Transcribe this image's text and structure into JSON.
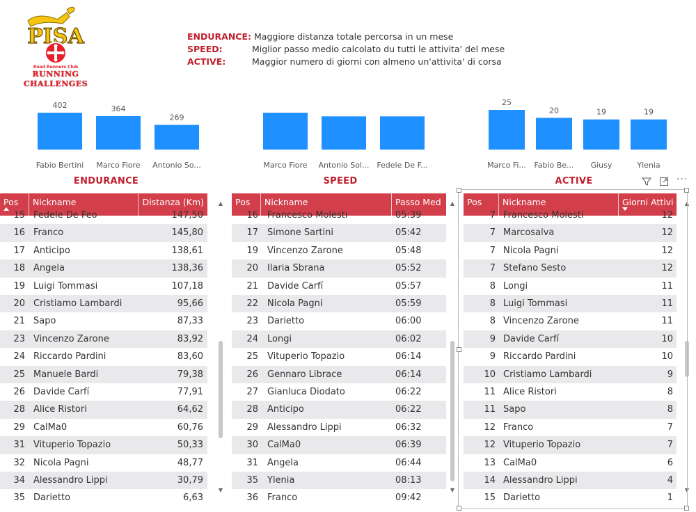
{
  "logo": {
    "name": "PISA",
    "club": "Road Runners Club",
    "line1": "RUNNING",
    "line2": "CHALLENGES",
    "colors": {
      "yellow": "#f6c514",
      "red": "#e8202a"
    }
  },
  "description": [
    {
      "key": "ENDURANCE:",
      "text": "Maggiore distanza totale percorsa in un mese"
    },
    {
      "key": "SPEED:",
      "text": "Miglior passo medio calcolato du tutti le attivita' del mese"
    },
    {
      "key": "ACTIVE:",
      "text": "Maggior numero di giorni con almeno un'attivita' di corsa"
    }
  ],
  "chart_data": [
    {
      "type": "bar",
      "title": "ENDURANCE",
      "categories": [
        "Fabio Bertini",
        "Marco Fiore",
        "Antonio So..."
      ],
      "values": [
        402,
        364,
        269
      ],
      "value_labels": [
        "402",
        "364",
        "269"
      ],
      "ylim": [
        0,
        402
      ]
    },
    {
      "type": "bar",
      "title": "SPEED",
      "categories": [
        "Marco Fiore",
        "Antonio Sol...",
        "Fedele De F..."
      ],
      "values": [
        1,
        0.9,
        0.9
      ],
      "value_labels": [
        "",
        "",
        ""
      ],
      "ylim": [
        0,
        1
      ]
    },
    {
      "type": "bar",
      "title": "ACTIVE",
      "categories": [
        "Marco Fi...",
        "Fabio Be...",
        "Giusy",
        "Ylenia"
      ],
      "values": [
        25,
        20,
        19,
        19
      ],
      "value_labels": [
        "25",
        "20",
        "19",
        "19"
      ],
      "ylim": [
        0,
        25
      ]
    }
  ],
  "colors": {
    "bar": "#1e90ff",
    "header": "#d23f4b",
    "title": "#c0202e",
    "alt_row": "#e9e9ec"
  },
  "tables": {
    "endurance": {
      "headers": [
        "Pos",
        "Nickname",
        "Distanza (Km)"
      ],
      "partial_row": [
        "15",
        "Fedele De Feo",
        "147,50"
      ],
      "rows": [
        [
          "16",
          "Franco",
          "145,80"
        ],
        [
          "17",
          "Anticipo",
          "138,61"
        ],
        [
          "18",
          "Angela",
          "138,36"
        ],
        [
          "19",
          "Luigi Tommasi",
          "107,18"
        ],
        [
          "20",
          "Cristiamo Lambardi",
          "95,66"
        ],
        [
          "21",
          "Sapo",
          "87,33"
        ],
        [
          "23",
          "Vincenzo Zarone",
          "83,92"
        ],
        [
          "24",
          "Riccardo Pardini",
          "83,60"
        ],
        [
          "25",
          "Manuele Bardi",
          "79,38"
        ],
        [
          "26",
          "Davide Carfí",
          "77,91"
        ],
        [
          "28",
          "Alice Ristori",
          "64,62"
        ],
        [
          "29",
          "CalMa0",
          "60,76"
        ],
        [
          "31",
          "Vituperio Topazio",
          "50,33"
        ],
        [
          "32",
          "Nicola Pagni",
          "48,77"
        ],
        [
          "34",
          "Alessandro Lippi",
          "30,79"
        ],
        [
          "35",
          "Darietto",
          "6,63"
        ]
      ]
    },
    "speed": {
      "headers": [
        "Pos",
        "Nickname",
        "Passo Med"
      ],
      "partial_row": [
        "16",
        "Francesco Molesti",
        "05:39"
      ],
      "rows": [
        [
          "17",
          "Simone Sartini",
          "05:42"
        ],
        [
          "19",
          "Vincenzo Zarone",
          "05:48"
        ],
        [
          "20",
          "Ilaria Sbrana",
          "05:52"
        ],
        [
          "21",
          "Davide Carfí",
          "05:57"
        ],
        [
          "22",
          "Nicola Pagni",
          "05:59"
        ],
        [
          "23",
          "Darietto",
          "06:00"
        ],
        [
          "24",
          "Longi",
          "06:02"
        ],
        [
          "25",
          "Vituperio Topazio",
          "06:14"
        ],
        [
          "26",
          "Gennaro Librace",
          "06:14"
        ],
        [
          "27",
          "Gianluca Diodato",
          "06:22"
        ],
        [
          "28",
          "Anticipo",
          "06:22"
        ],
        [
          "29",
          "Alessandro Lippi",
          "06:32"
        ],
        [
          "30",
          "CalMa0",
          "06:39"
        ],
        [
          "31",
          "Angela",
          "06:44"
        ],
        [
          "35",
          "Ylenia",
          "08:13"
        ],
        [
          "36",
          "Franco",
          "09:42"
        ]
      ]
    },
    "active": {
      "headers": [
        "Pos",
        "Nickname",
        "Giorni Attivi"
      ],
      "partial_row": [
        "7",
        "Francesco Molesti",
        "12"
      ],
      "rows": [
        [
          "7",
          "Marcosalva",
          "12"
        ],
        [
          "7",
          "Nicola Pagni",
          "12"
        ],
        [
          "7",
          "Stefano Sesto",
          "12"
        ],
        [
          "8",
          "Longi",
          "11"
        ],
        [
          "8",
          "Luigi Tommasi",
          "11"
        ],
        [
          "8",
          "Vincenzo Zarone",
          "11"
        ],
        [
          "9",
          "Davide Carfí",
          "10"
        ],
        [
          "9",
          "Riccardo Pardini",
          "10"
        ],
        [
          "10",
          "Cristiamo Lambardi",
          "9"
        ],
        [
          "11",
          "Alice Ristori",
          "8"
        ],
        [
          "11",
          "Sapo",
          "8"
        ],
        [
          "12",
          "Franco",
          "7"
        ],
        [
          "12",
          "Vituperio Topazio",
          "7"
        ],
        [
          "13",
          "CalMa0",
          "6"
        ],
        [
          "14",
          "Alessandro Lippi",
          "4"
        ],
        [
          "15",
          "Darietto",
          "1"
        ]
      ]
    }
  },
  "icons": {
    "filter": "filter-icon",
    "focus": "focus-mode-icon",
    "more": "more-options-icon"
  }
}
